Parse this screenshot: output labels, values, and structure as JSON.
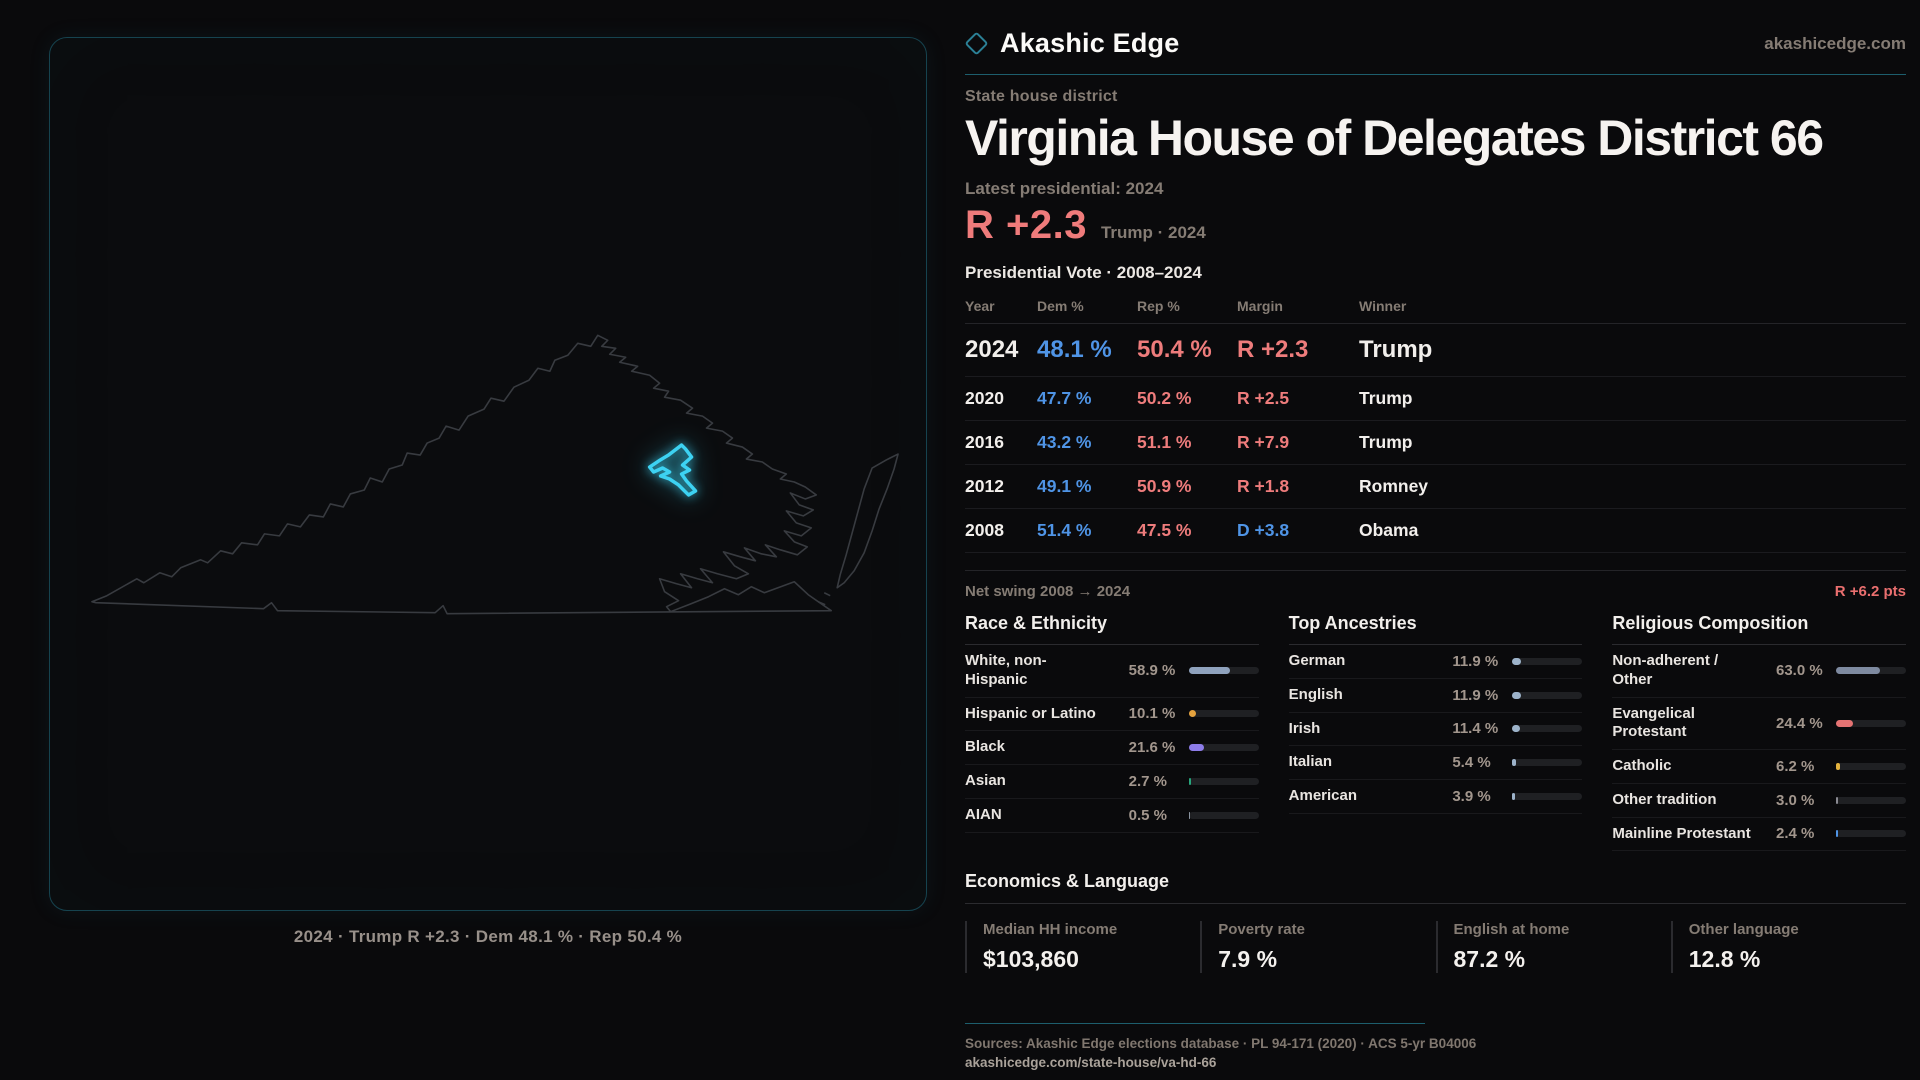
{
  "brand": {
    "name": "Akashic Edge",
    "domain": "akashicedge.com"
  },
  "eyebrow": "State house district",
  "title": "Virginia House of Delegates District 66",
  "latest_label": "Latest presidential: 2024",
  "headline_margin": {
    "value": "R +2.3",
    "detail": "Trump · 2024"
  },
  "table": {
    "title": "Presidential Vote · 2008–2024",
    "columns": [
      "Year",
      "Dem %",
      "Rep %",
      "Margin",
      "Winner"
    ],
    "rows": [
      {
        "year": "2024",
        "dem": "48.1 %",
        "rep": "50.4 %",
        "margin": "R +2.3",
        "margin_party": "R",
        "winner": "Trump",
        "emphasis": true
      },
      {
        "year": "2020",
        "dem": "47.7 %",
        "rep": "50.2 %",
        "margin": "R +2.5",
        "margin_party": "R",
        "winner": "Trump",
        "emphasis": false
      },
      {
        "year": "2016",
        "dem": "43.2 %",
        "rep": "51.1 %",
        "margin": "R +7.9",
        "margin_party": "R",
        "winner": "Trump",
        "emphasis": false
      },
      {
        "year": "2012",
        "dem": "49.1 %",
        "rep": "50.9 %",
        "margin": "R +1.8",
        "margin_party": "R",
        "winner": "Romney",
        "emphasis": false
      },
      {
        "year": "2008",
        "dem": "51.4 %",
        "rep": "47.5 %",
        "margin": "D +3.8",
        "margin_party": "D",
        "winner": "Obama",
        "emphasis": false
      }
    ]
  },
  "net_swing": {
    "label": "Net swing 2008 → 2024",
    "value": "R +6.2 pts"
  },
  "demographics": [
    {
      "title": "Race & Ethnicity",
      "rows": [
        {
          "label": "White, non-\nHispanic",
          "value": "58.9 %",
          "pct": 58.9,
          "color": "#8fa2bd"
        },
        {
          "label": "Hispanic or Latino",
          "value": "10.1 %",
          "pct": 10.1,
          "color": "#e5a23e"
        },
        {
          "label": "Black",
          "value": "21.6 %",
          "pct": 21.6,
          "color": "#8d7ce9"
        },
        {
          "label": "Asian",
          "value": "2.7 %",
          "pct": 2.7,
          "color": "#27a57c"
        },
        {
          "label": "AIAN",
          "value": "0.5 %",
          "pct": 0.5,
          "color": "#8a94a0"
        }
      ]
    },
    {
      "title": "Top Ancestries",
      "rows": [
        {
          "label": "German",
          "value": "11.9 %",
          "pct": 11.9,
          "color": "#9db3ca"
        },
        {
          "label": "English",
          "value": "11.9 %",
          "pct": 11.9,
          "color": "#9db3ca"
        },
        {
          "label": "Irish",
          "value": "11.4 %",
          "pct": 11.4,
          "color": "#9db3ca"
        },
        {
          "label": "Italian",
          "value": "5.4 %",
          "pct": 5.4,
          "color": "#9db3ca"
        },
        {
          "label": "American",
          "value": "3.9 %",
          "pct": 3.9,
          "color": "#9db3ca"
        }
      ]
    },
    {
      "title": "Religious Composition",
      "rows": [
        {
          "label": "Non-adherent /\nOther",
          "value": "63.0 %",
          "pct": 63.0,
          "color": "#7e8aa0"
        },
        {
          "label": "Evangelical\nProtestant",
          "value": "24.4 %",
          "pct": 24.4,
          "color": "#e57373"
        },
        {
          "label": "Catholic",
          "value": "6.2 %",
          "pct": 6.2,
          "color": "#e3b23e"
        },
        {
          "label": "Other tradition",
          "value": "3.0 %",
          "pct": 3.0,
          "color": "#8a8a92"
        },
        {
          "label": "Mainline Protestant",
          "value": "2.4 %",
          "pct": 2.4,
          "color": "#4f94e6"
        }
      ]
    }
  ],
  "economics": {
    "title": "Economics & Language",
    "stats": [
      {
        "label": "Median HH income",
        "value": "$103,860"
      },
      {
        "label": "Poverty rate",
        "value": "7.9 %"
      },
      {
        "label": "English at home",
        "value": "87.2 %"
      },
      {
        "label": "Other language",
        "value": "12.8 %"
      }
    ]
  },
  "footer": {
    "sources": "Sources: Akashic Edge elections database · PL 94-171 (2020) · ACS 5-yr B04006",
    "link": "akashicedge.com/state-house/va-hd-66"
  },
  "map": {
    "caption": "2024 · Trump R +2.3 · Dem 48.1 % · Rep 50.4 %",
    "outline_color": "#383b40",
    "district_color": "#3dd2f2"
  },
  "colors": {
    "dem_blue": "#4f94e6",
    "rep_red": "#ee7c7c",
    "accent_teal": "#2b8096",
    "background": "#0a0a0c"
  }
}
